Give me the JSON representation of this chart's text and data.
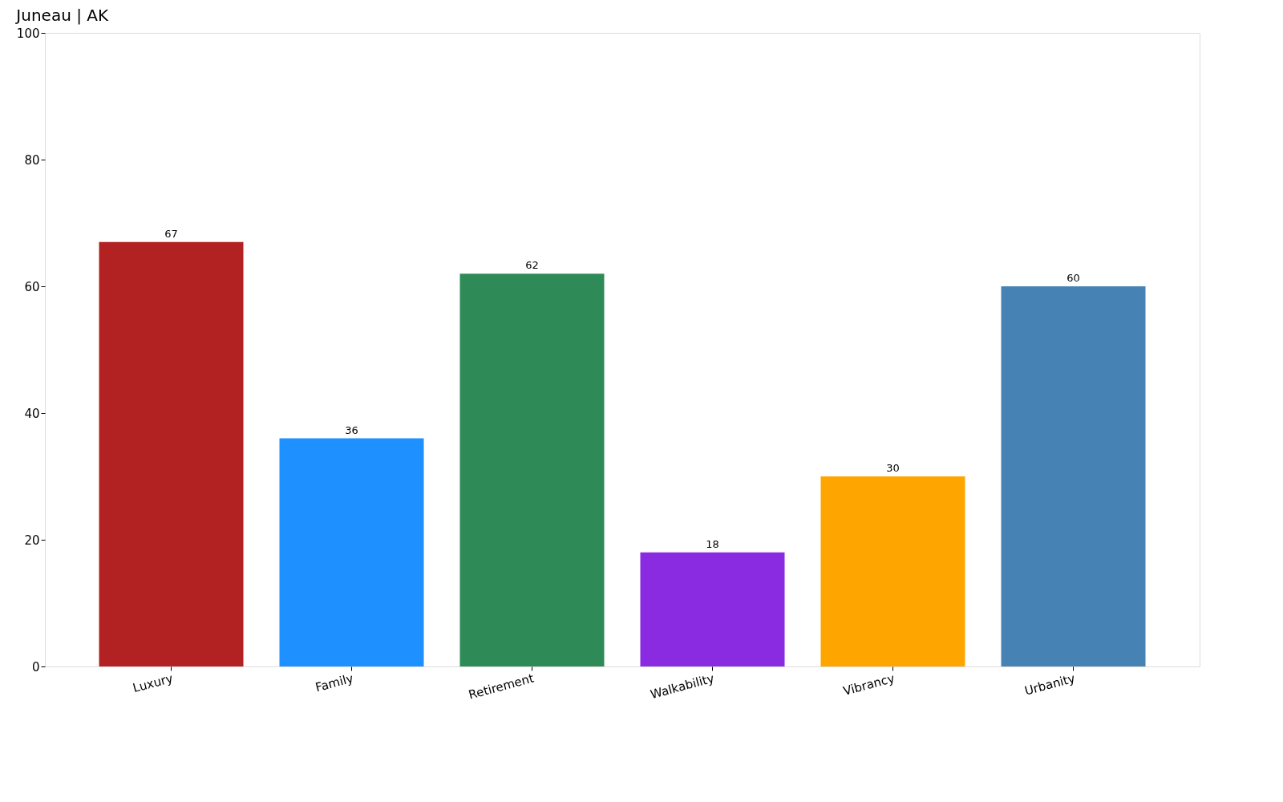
{
  "chart_data": {
    "type": "bar",
    "title": "Juneau | AK",
    "categories": [
      "Luxury",
      "Family",
      "Retirement",
      "Walkability",
      "Vibrancy",
      "Urbanity"
    ],
    "values": [
      67,
      36,
      62,
      18,
      30,
      60
    ],
    "colors": [
      "#b22222",
      "#1e90ff",
      "#2e8b57",
      "#8a2be2",
      "#ffa500",
      "#4682b4"
    ],
    "ylim": [
      0,
      100
    ],
    "yticks": [
      0,
      20,
      40,
      60,
      80,
      100
    ],
    "grid": false,
    "data_labels": true
  }
}
